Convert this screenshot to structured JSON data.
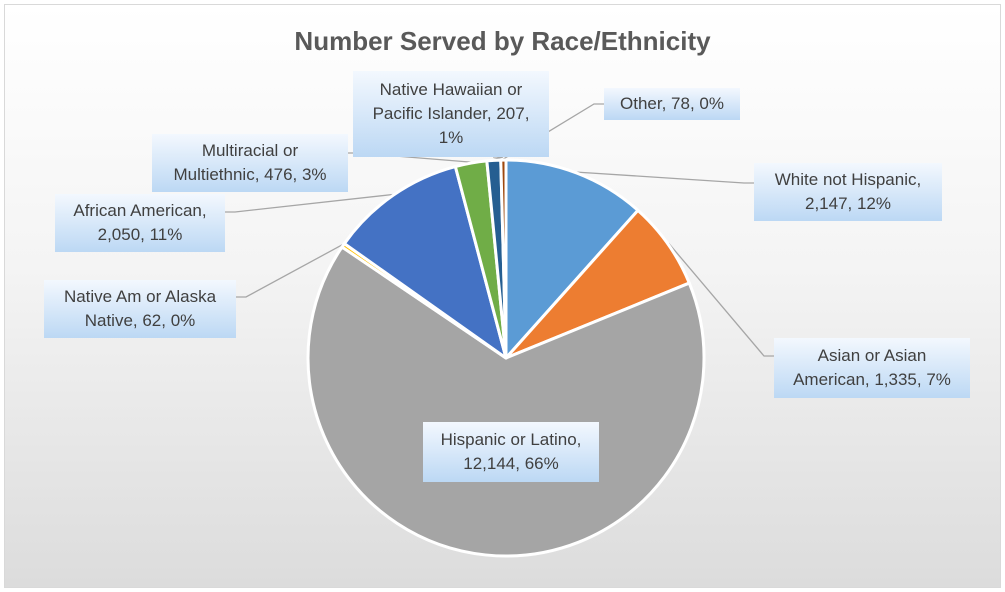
{
  "chart_data": {
    "type": "pie",
    "title": "Number Served by Race/Ethnicity",
    "slices": [
      {
        "label": "White not Hispanic",
        "value": 2147,
        "percent": "12%",
        "display": "2,147",
        "color": "#5b9bd5"
      },
      {
        "label": "Asian or Asian American",
        "value": 1335,
        "percent": "7%",
        "display": "1,335",
        "color": "#ed7d31"
      },
      {
        "label": "Hispanic or Latino",
        "value": 12144,
        "percent": "66%",
        "display": "12,144",
        "color": "#a5a5a5"
      },
      {
        "label": "Native Am or Alaska Native",
        "value": 62,
        "percent": "0%",
        "display": "62",
        "color": "#ffc000"
      },
      {
        "label": "African American",
        "value": 2050,
        "percent": "11%",
        "display": "2,050",
        "color": "#4472c4"
      },
      {
        "label": "Multiracial or Multiethnic",
        "value": 476,
        "percent": "3%",
        "display": "476",
        "color": "#70ad47"
      },
      {
        "label": "Native Hawaiian or Pacific Islander",
        "value": 207,
        "percent": "1%",
        "display": "207",
        "color": "#255e91"
      },
      {
        "label": "Other",
        "value": 78,
        "percent": "0%",
        "display": "78",
        "color": "#9e480e"
      }
    ],
    "labels": [
      {
        "lines": [
          "White not Hispanic,",
          "2,147, 12%"
        ]
      },
      {
        "lines": [
          "Asian or Asian",
          "American, 1,335, 7%"
        ]
      },
      {
        "lines": [
          "Hispanic or Latino,",
          "12,144, 66%"
        ]
      },
      {
        "lines": [
          "Native Am or Alaska",
          "Native, 62, 0%"
        ]
      },
      {
        "lines": [
          "African American,",
          "2,050, 11%"
        ]
      },
      {
        "lines": [
          "Multiracial or",
          "Multiethnic, 476, 3%"
        ]
      },
      {
        "lines": [
          "Native Hawaiian or",
          "Pacific Islander, 207,",
          "1%"
        ]
      },
      {
        "lines": [
          "Other, 78, 0%"
        ]
      }
    ]
  }
}
